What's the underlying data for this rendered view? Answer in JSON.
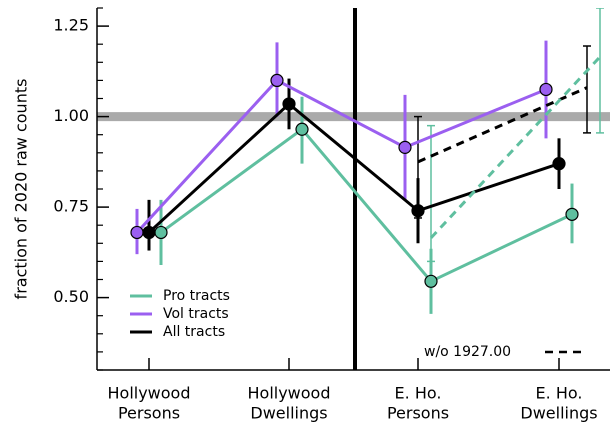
{
  "chart_data": {
    "type": "line",
    "ylabel": "fraction of 2020 raw counts",
    "categories": [
      [
        "Hollywood",
        "Persons"
      ],
      [
        "Hollywood",
        "Dwellings"
      ],
      [
        "E. Ho.",
        "Persons"
      ],
      [
        "E. Ho.",
        "Dwellings"
      ]
    ],
    "ylim": [
      0.3,
      1.3
    ],
    "yticks": [
      {
        "value": 0.5,
        "label": "0.50"
      },
      {
        "value": 0.75,
        "label": "0.75"
      },
      {
        "value": 1.0,
        "label": "1.00"
      },
      {
        "value": 1.25,
        "label": "1.25"
      }
    ],
    "yminor_ticks": [
      0.3,
      0.35,
      0.4,
      0.45,
      0.55,
      0.6,
      0.65,
      0.7,
      0.8,
      0.85,
      0.9,
      0.95,
      1.05,
      1.1,
      1.15,
      1.2,
      1.3
    ],
    "reference_line": 1.0,
    "reference_color": "#aaaaaa",
    "series": [
      {
        "name": "Pro tracts",
        "color": "#5fbf9f",
        "line_style": "solid",
        "values": [
          0.68,
          0.965,
          0.545,
          0.73
        ],
        "ranges": [
          [
            0.59,
            0.77
          ],
          [
            0.87,
            1.055
          ],
          [
            0.455,
            0.635
          ],
          [
            0.65,
            0.815
          ]
        ]
      },
      {
        "name": "Vol tracts",
        "color": "#9b5ff0",
        "line_style": "solid",
        "values": [
          0.68,
          1.1,
          0.915,
          1.075
        ],
        "ranges": [
          [
            0.62,
            0.745
          ],
          [
            1.0,
            1.205
          ],
          [
            0.77,
            1.06
          ],
          [
            0.94,
            1.21
          ]
        ]
      },
      {
        "name": "All tracts",
        "color": "#000000",
        "line_style": "solid",
        "values": [
          0.68,
          1.035,
          0.74,
          0.87
        ],
        "ranges": [
          [
            0.63,
            0.77
          ],
          [
            0.965,
            1.105
          ],
          [
            0.65,
            0.83
          ],
          [
            0.8,
            0.94
          ]
        ]
      },
      {
        "color": "#000000",
        "line_style": "dashed",
        "values": [
          null,
          null,
          0.875,
          1.08
        ],
        "ranges": [
          null,
          null,
          [
            0.72,
            1.0
          ],
          [
            0.955,
            1.195
          ]
        ]
      },
      {
        "color": "#5fbf9f",
        "line_style": "dashed",
        "values": [
          null,
          null,
          0.665,
          1.165
        ],
        "ranges": [
          null,
          null,
          [
            0.6,
            0.975
          ],
          [
            0.955,
            1.3
          ]
        ]
      }
    ],
    "annotation": "w/o 1927.00"
  }
}
